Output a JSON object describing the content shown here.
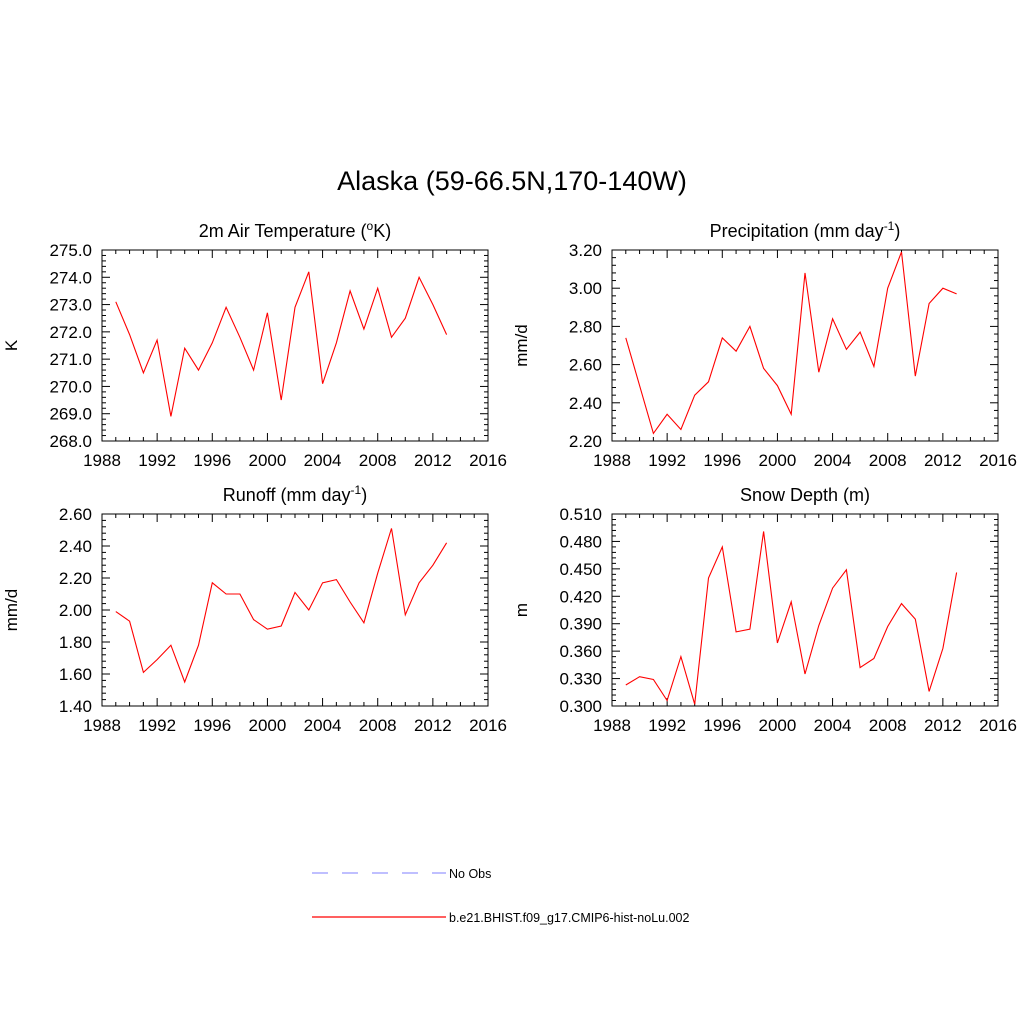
{
  "title": "Alaska (59-66.5N,170-140W)",
  "colors": {
    "model_line": "#ff0000",
    "obs_line": "#9999ff",
    "axis": "#000000"
  },
  "chart_data": [
    {
      "type": "line",
      "title": "2m Air Temperature (",
      "title_sup": "o",
      "title_after": "K)",
      "ylabel": "K",
      "xlim": [
        1988,
        2016
      ],
      "xticks": [
        "1988",
        "1992",
        "1996",
        "2000",
        "2004",
        "2008",
        "2012",
        "2016"
      ],
      "ylim": [
        268.0,
        275.0
      ],
      "yticks": [
        "268.0",
        "269.0",
        "270.0",
        "271.0",
        "272.0",
        "273.0",
        "274.0",
        "275.0"
      ],
      "x": [
        1989,
        1990,
        1991,
        1992,
        1993,
        1994,
        1995,
        1996,
        1997,
        1998,
        1999,
        2000,
        2001,
        2002,
        2003,
        2004,
        2005,
        2006,
        2007,
        2008,
        2009,
        2010,
        2011,
        2012,
        2013
      ],
      "series": [
        {
          "values": [
            273.1,
            271.9,
            270.5,
            271.7,
            268.9,
            271.4,
            270.6,
            271.6,
            272.9,
            271.8,
            270.6,
            272.7,
            269.5,
            272.9,
            274.2,
            270.1,
            271.6,
            273.5,
            272.1,
            273.6,
            271.8,
            272.5,
            274.0,
            273.0,
            271.9
          ]
        }
      ]
    },
    {
      "type": "line",
      "title": "Precipitation (mm day",
      "title_sup": "-1",
      "title_after": ")",
      "ylabel": "mm/d",
      "xlim": [
        1988,
        2016
      ],
      "xticks": [
        "1988",
        "1992",
        "1996",
        "2000",
        "2004",
        "2008",
        "2012",
        "2016"
      ],
      "ylim": [
        2.2,
        3.2
      ],
      "yticks": [
        "2.20",
        "2.40",
        "2.60",
        "2.80",
        "3.00",
        "3.20"
      ],
      "x": [
        1989,
        1990,
        1991,
        1992,
        1993,
        1994,
        1995,
        1996,
        1997,
        1998,
        1999,
        2000,
        2001,
        2002,
        2003,
        2004,
        2005,
        2006,
        2007,
        2008,
        2009,
        2010,
        2011,
        2012,
        2013
      ],
      "series": [
        {
          "values": [
            2.74,
            2.49,
            2.24,
            2.34,
            2.26,
            2.44,
            2.51,
            2.74,
            2.67,
            2.8,
            2.58,
            2.49,
            2.34,
            3.08,
            2.56,
            2.84,
            2.68,
            2.77,
            2.59,
            3.0,
            3.19,
            2.54,
            2.92,
            3.0,
            2.97
          ]
        }
      ]
    },
    {
      "type": "line",
      "title": "Runoff (mm day",
      "title_sup": "-1",
      "title_after": ")",
      "ylabel": "mm/d",
      "xlim": [
        1988,
        2016
      ],
      "xticks": [
        "1988",
        "1992",
        "1996",
        "2000",
        "2004",
        "2008",
        "2012",
        "2016"
      ],
      "ylim": [
        1.4,
        2.6
      ],
      "yticks": [
        "1.40",
        "1.60",
        "1.80",
        "2.00",
        "2.20",
        "2.40",
        "2.60"
      ],
      "x": [
        1989,
        1990,
        1991,
        1992,
        1993,
        1994,
        1995,
        1996,
        1997,
        1998,
        1999,
        2000,
        2001,
        2002,
        2003,
        2004,
        2005,
        2006,
        2007,
        2008,
        2009,
        2010,
        2011,
        2012,
        2013
      ],
      "series": [
        {
          "values": [
            1.99,
            1.93,
            1.61,
            1.69,
            1.78,
            1.55,
            1.78,
            2.17,
            2.1,
            2.1,
            1.94,
            1.88,
            1.9,
            2.11,
            2.0,
            2.17,
            2.19,
            2.05,
            1.92,
            2.23,
            2.51,
            1.97,
            2.17,
            2.28,
            2.42
          ]
        }
      ]
    },
    {
      "type": "line",
      "title": "Snow Depth (m)",
      "title_sup": "",
      "title_after": "",
      "ylabel": "m",
      "xlim": [
        1988,
        2016
      ],
      "xticks": [
        "1988",
        "1992",
        "1996",
        "2000",
        "2004",
        "2008",
        "2012",
        "2016"
      ],
      "ylim": [
        0.3,
        0.51
      ],
      "yticks": [
        "0.300",
        "0.330",
        "0.360",
        "0.390",
        "0.420",
        "0.450",
        "0.480",
        "0.510"
      ],
      "x": [
        1989,
        1990,
        1991,
        1992,
        1993,
        1994,
        1995,
        1996,
        1997,
        1998,
        1999,
        2000,
        2001,
        2002,
        2003,
        2004,
        2005,
        2006,
        2007,
        2008,
        2009,
        2010,
        2011,
        2012,
        2013
      ],
      "series": [
        {
          "values": [
            0.323,
            0.332,
            0.329,
            0.306,
            0.354,
            0.302,
            0.44,
            0.474,
            0.381,
            0.384,
            0.491,
            0.369,
            0.414,
            0.335,
            0.388,
            0.429,
            0.449,
            0.342,
            0.352,
            0.387,
            0.412,
            0.395,
            0.316,
            0.363,
            0.446
          ]
        }
      ]
    }
  ],
  "legend": [
    {
      "label": "No Obs",
      "style": "dashed",
      "color": "#9999ff"
    },
    {
      "label": "b.e21.BHIST.f09_g17.CMIP6-hist-noLu.002",
      "style": "solid",
      "color": "#ff0000"
    }
  ]
}
